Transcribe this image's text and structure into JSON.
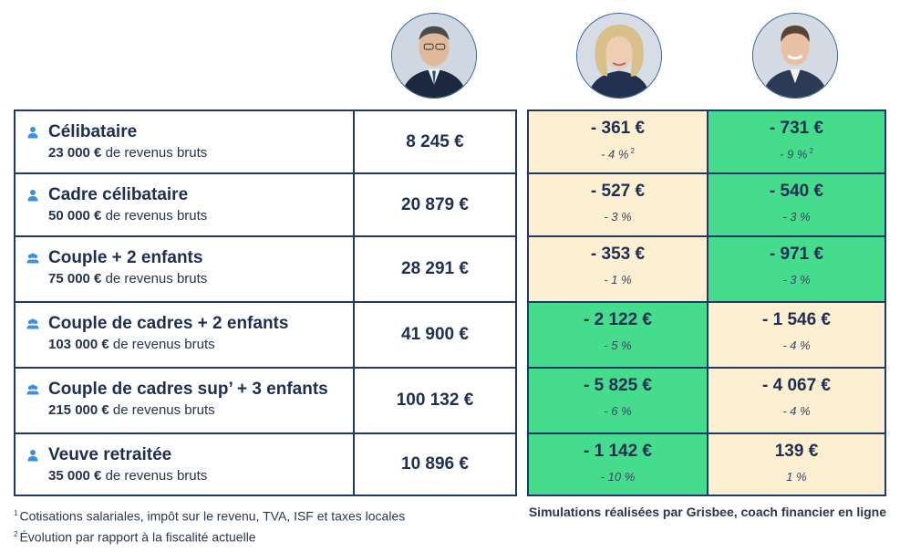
{
  "colors": {
    "border": "#1f3a66",
    "text": "#1e2f52",
    "icon_blue": "#3d8ee0",
    "better_green": "#45dc8e",
    "worse_cream": "#fdefd2"
  },
  "columns": [
    {
      "key": "current",
      "avatar": "portrait-1"
    },
    {
      "key": "candidate_a",
      "avatar": "portrait-2"
    },
    {
      "key": "candidate_b",
      "avatar": "portrait-3"
    }
  ],
  "chart_data": {
    "type": "table",
    "title": "",
    "units": "€",
    "rows": [
      {
        "icon": "person-icon",
        "profile": "Célibataire",
        "income_value": "23 000 €",
        "income_suffix": "de revenus bruts",
        "current": "8 245 €",
        "candidate_a": {
          "amount": "- 361 €",
          "pct": "- 4 %",
          "note": "2",
          "color": "cream"
        },
        "candidate_b": {
          "amount": "- 731 €",
          "pct": "- 9 %",
          "note": "2",
          "color": "green"
        }
      },
      {
        "icon": "person-icon",
        "profile": "Cadre célibataire",
        "income_value": "50 000 €",
        "income_suffix": "de revenus bruts",
        "current": "20 879 €",
        "candidate_a": {
          "amount": "- 527 €",
          "pct": "- 3 %",
          "note": "",
          "color": "cream"
        },
        "candidate_b": {
          "amount": "- 540 €",
          "pct": "- 3 %",
          "note": "",
          "color": "green"
        }
      },
      {
        "icon": "group-icon",
        "profile": "Couple + 2 enfants",
        "income_value": "75 000 €",
        "income_suffix": "de revenus bruts",
        "current": "28 291 €",
        "candidate_a": {
          "amount": "- 353 €",
          "pct": "- 1 %",
          "note": "",
          "color": "cream"
        },
        "candidate_b": {
          "amount": "- 971 €",
          "pct": "- 3 %",
          "note": "",
          "color": "green"
        }
      },
      {
        "icon": "group-icon",
        "profile": "Couple de cadres + 2 enfants",
        "income_value": "103 000 €",
        "income_suffix": "de revenus bruts",
        "current": "41 900 €",
        "candidate_a": {
          "amount": "- 2 122 €",
          "pct": "- 5 %",
          "note": "",
          "color": "green"
        },
        "candidate_b": {
          "amount": "- 1 546 €",
          "pct": "- 4 %",
          "note": "",
          "color": "cream"
        }
      },
      {
        "icon": "group-icon",
        "profile": "Couple de cadres sup’ + 3 enfants",
        "income_value": "215 000 €",
        "income_suffix": "de revenus bruts",
        "current": "100 132 €",
        "candidate_a": {
          "amount": "- 5 825 €",
          "pct": "- 6 %",
          "note": "",
          "color": "green"
        },
        "candidate_b": {
          "amount": "- 4 067 €",
          "pct": "- 4 %",
          "note": "",
          "color": "cream"
        }
      },
      {
        "icon": "person-icon",
        "profile": "Veuve retraitée",
        "income_value": "35 000 €",
        "income_suffix": "de revenus bruts",
        "current": "10 896 €",
        "candidate_a": {
          "amount": "- 1 142 €",
          "pct": "- 10 %",
          "note": "",
          "color": "green"
        },
        "candidate_b": {
          "amount": "139 €",
          "pct": "1 %",
          "note": "",
          "color": "cream"
        }
      }
    ]
  },
  "footnotes": [
    {
      "num": "1",
      "text": "Cotisations salariales, impôt sur le revenu, TVA, ISF et taxes locales"
    },
    {
      "num": "2",
      "text": "Évolution par rapport à la fiscalité actuelle"
    }
  ],
  "credit": "Simulations réalisées par Grisbee, coach financier en ligne"
}
